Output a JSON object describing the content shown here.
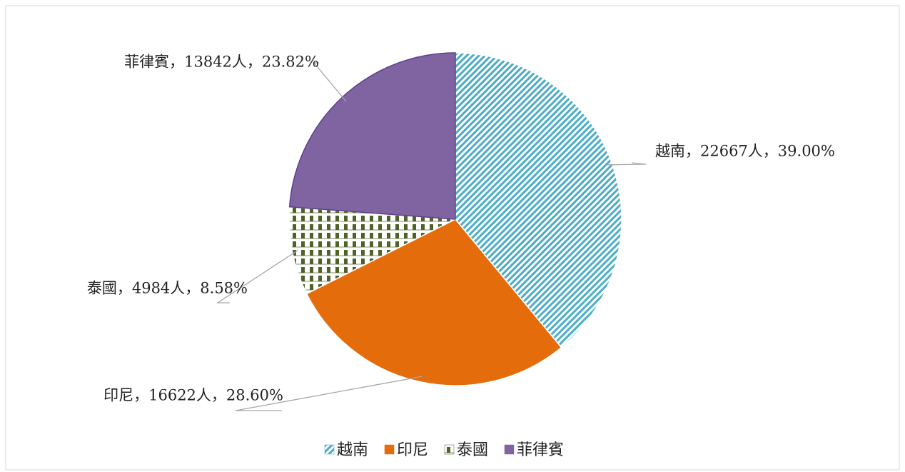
{
  "chart_data": {
    "type": "pie",
    "categories": [
      "越南",
      "印尼",
      "泰國",
      "菲律賓"
    ],
    "values": [
      22667,
      16622,
      4984,
      13842
    ],
    "value_labels": [
      "越南，22667人，39.00%",
      "印尼，16622人，28.60%",
      "泰國，4984人，8.58%",
      "菲律賓，13842人，23.82%"
    ],
    "colors": [
      "#4bacc6",
      "#e46c0a",
      "#4f6228",
      "#8064a2"
    ],
    "patterns": [
      "diagonal",
      "solid",
      "check",
      "solid"
    ],
    "start_angle": 0,
    "direction": "clockwise",
    "legend": "bottom"
  }
}
